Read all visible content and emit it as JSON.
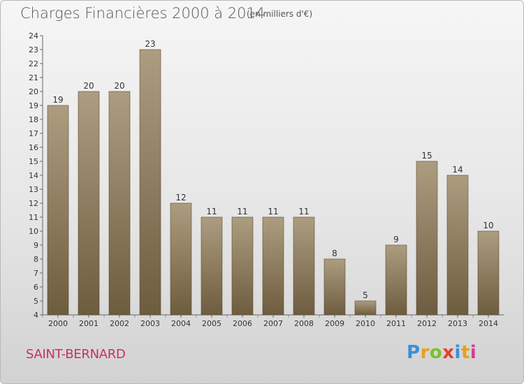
{
  "title": "Charges Financières 2000 à 2014",
  "subtitle": "(en milliers d'€)",
  "commune": "SAINT-BERNARD",
  "logo": {
    "letters": [
      "P",
      "r",
      "o",
      "x",
      "i",
      "t",
      "i"
    ],
    "colors": [
      "#3a8fd8",
      "#e8a020",
      "#7cbf2e",
      "#e8402a",
      "#3a8fd8",
      "#e8a020",
      "#d04090"
    ]
  },
  "colors": {
    "bar_light": "#ad9d80",
    "bar_dark": "#6e5c3f",
    "axis": "#666666",
    "label": "#333333"
  },
  "chart_data": {
    "type": "bar",
    "categories": [
      "2000",
      "2001",
      "2002",
      "2003",
      "2004",
      "2005",
      "2006",
      "2007",
      "2008",
      "2009",
      "2010",
      "2011",
      "2012",
      "2013",
      "2014"
    ],
    "values": [
      19,
      20,
      20,
      23,
      12,
      11,
      11,
      11,
      11,
      8,
      5,
      9,
      15,
      14,
      10
    ],
    "ylim": [
      4,
      24
    ],
    "yticks": [
      4,
      5,
      6,
      7,
      8,
      9,
      10,
      11,
      12,
      13,
      14,
      15,
      16,
      17,
      18,
      19,
      20,
      21,
      22,
      23,
      24
    ],
    "grid": false,
    "data_labels": true
  }
}
